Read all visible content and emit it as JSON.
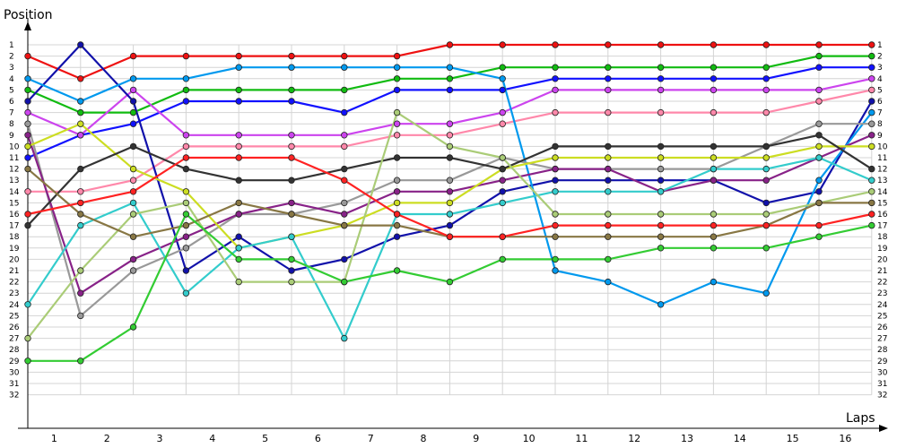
{
  "chart_data": {
    "type": "line",
    "title": "",
    "ylabel": "Position",
    "xlabel": "Laps",
    "x": [
      0,
      1,
      2,
      3,
      4,
      5,
      6,
      7,
      8,
      9,
      10,
      11,
      12,
      13,
      14,
      15,
      16
    ],
    "xticks": [
      "1",
      "2",
      "3",
      "4",
      "5",
      "6",
      "7",
      "8",
      "9",
      "10",
      "11",
      "12",
      "13",
      "14",
      "15",
      "16"
    ],
    "yticks": [
      "1",
      "2",
      "3",
      "4",
      "5",
      "6",
      "7",
      "8",
      "9",
      "10",
      "11",
      "12",
      "13",
      "14",
      "15",
      "16",
      "17",
      "18",
      "19",
      "20",
      "21",
      "22",
      "23",
      "24",
      "25",
      "26",
      "27",
      "28",
      "29",
      "30",
      "31",
      "32"
    ],
    "ylim": [
      1,
      32
    ],
    "grid": true,
    "series": [
      {
        "color": "#ee1111",
        "values": [
          2,
          4,
          2,
          2,
          2,
          2,
          2,
          2,
          1,
          1,
          1,
          1,
          1,
          1,
          1,
          1,
          1
        ]
      },
      {
        "color": "#11bb11",
        "values": [
          5,
          7,
          7,
          5,
          5,
          5,
          5,
          4,
          4,
          3,
          3,
          3,
          3,
          3,
          3,
          2,
          2
        ]
      },
      {
        "color": "#1111ff",
        "values": [
          11,
          9,
          8,
          6,
          6,
          6,
          7,
          5,
          5,
          5,
          4,
          4,
          4,
          4,
          4,
          3,
          3
        ]
      },
      {
        "color": "#cc44ee",
        "values": [
          7,
          9,
          5,
          9,
          9,
          9,
          9,
          8,
          8,
          7,
          5,
          5,
          5,
          5,
          5,
          5,
          4
        ]
      },
      {
        "color": "#ff88aa",
        "values": [
          14,
          14,
          13,
          10,
          10,
          10,
          10,
          9,
          9,
          8,
          7,
          7,
          7,
          7,
          7,
          6,
          5
        ]
      },
      {
        "color": "#1111aa",
        "values": [
          6,
          1,
          6,
          21,
          18,
          21,
          20,
          18,
          17,
          14,
          13,
          13,
          13,
          13,
          15,
          14,
          6
        ]
      },
      {
        "color": "#0099ee",
        "values": [
          4,
          6,
          4,
          4,
          3,
          3,
          3,
          3,
          3,
          4,
          21,
          22,
          24,
          22,
          23,
          13,
          7
        ]
      },
      {
        "color": "#999999",
        "values": [
          8,
          25,
          21,
          19,
          16,
          16,
          15,
          13,
          13,
          11,
          12,
          12,
          12,
          12,
          10,
          8,
          8
        ]
      },
      {
        "color": "#882288",
        "values": [
          9,
          23,
          20,
          18,
          16,
          15,
          16,
          14,
          14,
          13,
          12,
          12,
          14,
          13,
          13,
          11,
          9
        ]
      },
      {
        "color": "#ccdd22",
        "values": [
          10,
          8,
          12,
          14,
          19,
          18,
          17,
          15,
          15,
          12,
          11,
          11,
          11,
          11,
          11,
          10,
          10
        ]
      },
      {
        "color": "#333333",
        "values": [
          17,
          12,
          10,
          12,
          13,
          13,
          12,
          11,
          11,
          12,
          10,
          10,
          10,
          10,
          10,
          9,
          12
        ]
      },
      {
        "color": "#33cccc",
        "values": [
          24,
          17,
          15,
          23,
          19,
          18,
          27,
          16,
          16,
          15,
          14,
          14,
          14,
          12,
          12,
          11,
          13
        ]
      },
      {
        "color": "#aacc77",
        "values": [
          27,
          21,
          16,
          15,
          22,
          22,
          22,
          7,
          10,
          11,
          16,
          16,
          16,
          16,
          16,
          15,
          14
        ]
      },
      {
        "color": "#887744",
        "values": [
          12,
          16,
          18,
          17,
          15,
          16,
          17,
          17,
          18,
          18,
          18,
          18,
          18,
          18,
          17,
          15,
          15
        ]
      },
      {
        "color": "#ff2222",
        "values": [
          16,
          15,
          14,
          11,
          11,
          11,
          13,
          16,
          18,
          18,
          17,
          17,
          17,
          17,
          17,
          17,
          16
        ]
      },
      {
        "color": "#33cc33",
        "values": [
          29,
          29,
          26,
          16,
          20,
          20,
          22,
          21,
          22,
          20,
          20,
          20,
          19,
          19,
          19,
          18,
          17
        ]
      }
    ]
  }
}
